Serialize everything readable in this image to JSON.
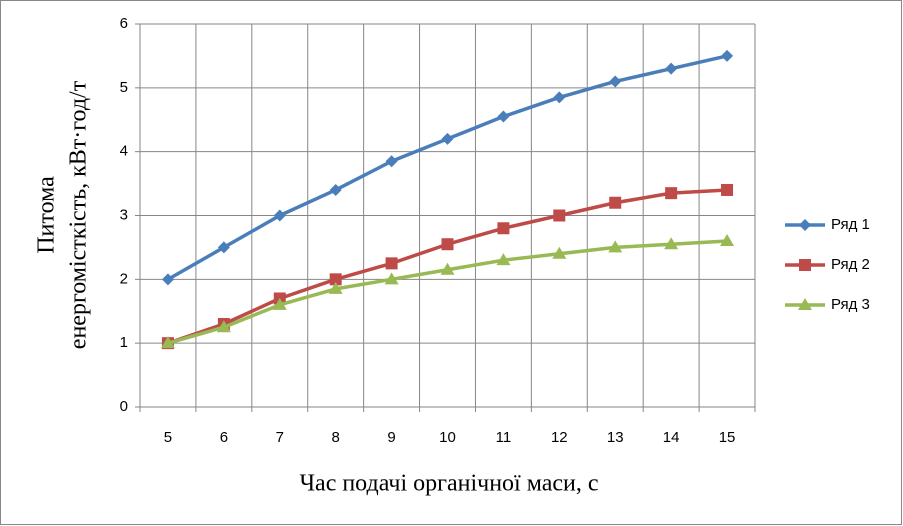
{
  "chart_data": {
    "type": "line",
    "xlabel": "Час подачі органічної маси, с",
    "ylabel": [
      "Питома",
      "енергомісткість, кВт·год/т"
    ],
    "categories": [
      "5",
      "6",
      "7",
      "8",
      "9",
      "10",
      "11",
      "12",
      "13",
      "14",
      "15"
    ],
    "series": [
      {
        "name": "Ряд 1",
        "color": "#4a7ebb",
        "marker": "diamond",
        "values": [
          2,
          2.5,
          3,
          3.4,
          3.85,
          4.2,
          4.55,
          4.85,
          5.1,
          5.3,
          5.5
        ]
      },
      {
        "name": "Ряд 2",
        "color": "#be4b48",
        "marker": "square",
        "values": [
          1,
          1.3,
          1.7,
          2,
          2.25,
          2.55,
          2.8,
          3,
          3.2,
          3.35,
          3.4
        ]
      },
      {
        "name": "Ряд 3",
        "color": "#98b954",
        "marker": "triangle",
        "values": [
          1,
          1.25,
          1.6,
          1.85,
          2,
          2.15,
          2.3,
          2.4,
          2.5,
          2.55,
          2.6
        ]
      }
    ],
    "ylim": [
      0,
      6
    ],
    "yticks": [
      0,
      1,
      2,
      3,
      4,
      5,
      6
    ],
    "grid": true,
    "legend": "right"
  }
}
